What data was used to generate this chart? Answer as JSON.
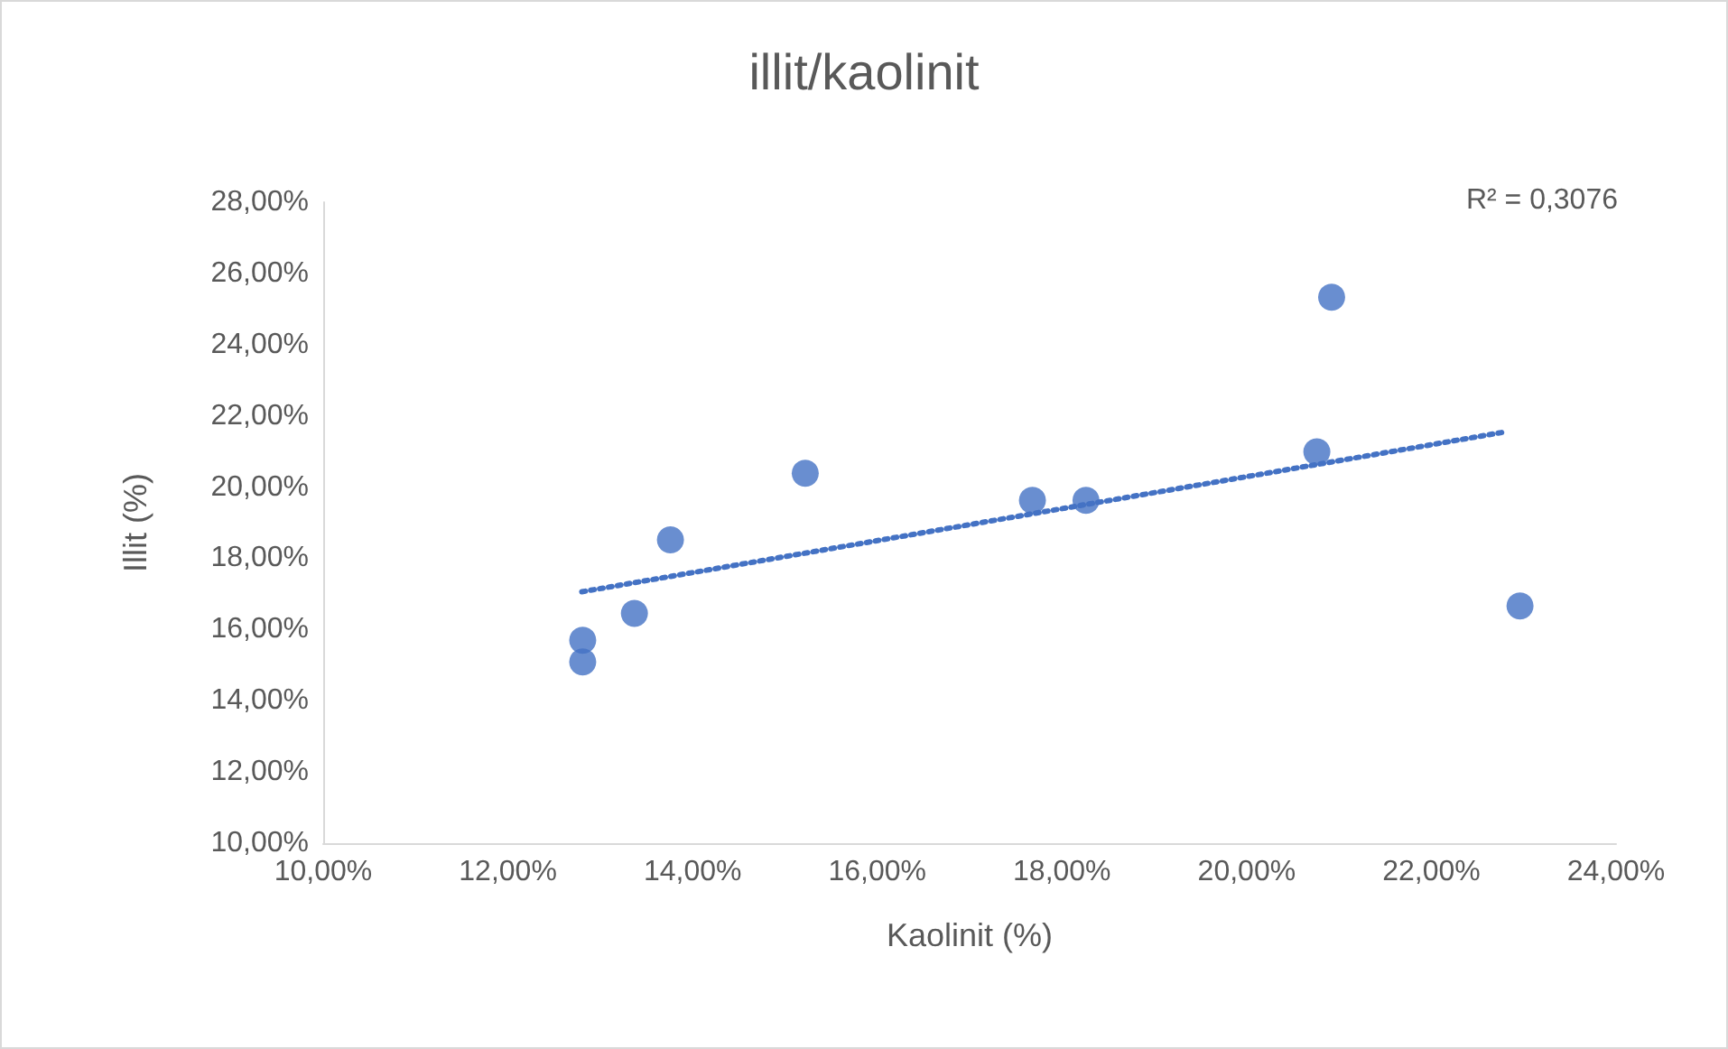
{
  "chart_data": {
    "type": "scatter",
    "title": "illit/kaolinit",
    "xlabel": "Kaolinit (%)",
    "ylabel": "Illit (%)",
    "xlim": [
      10,
      24
    ],
    "xticks": [
      {
        "value": 10,
        "label": "10,00%"
      },
      {
        "value": 12,
        "label": "12,00%"
      },
      {
        "value": 14,
        "label": "14,00%"
      },
      {
        "value": 16,
        "label": "16,00%"
      },
      {
        "value": 18,
        "label": "18,00%"
      },
      {
        "value": 20,
        "label": "20,00%"
      },
      {
        "value": 22,
        "label": "22,00%"
      },
      {
        "value": 24,
        "label": "24,00%"
      }
    ],
    "ylim": [
      10,
      28
    ],
    "yticks": [
      {
        "value": 10,
        "label": "10,00%"
      },
      {
        "value": 12,
        "label": "12,00%"
      },
      {
        "value": 14,
        "label": "14,00%"
      },
      {
        "value": 16,
        "label": "16,00%"
      },
      {
        "value": 18,
        "label": "18,00%"
      },
      {
        "value": 20,
        "label": "20,00%"
      },
      {
        "value": 22,
        "label": "22,00%"
      },
      {
        "value": 24,
        "label": "24,00%"
      },
      {
        "value": 26,
        "label": "26,00%"
      },
      {
        "value": 28,
        "label": "28,00%"
      }
    ],
    "grid": false,
    "marker": "circle",
    "annotations": [
      "R² = 0,3076"
    ],
    "series": [
      {
        "color": "#4472c4",
        "x": [
          12.81,
          12.81,
          13.37,
          13.76,
          15.22,
          17.68,
          18.26,
          20.76,
          20.92,
          22.96
        ],
        "values": [
          15.7,
          15.09,
          16.45,
          18.52,
          20.39,
          19.63,
          19.63,
          20.99,
          25.33,
          16.66
        ]
      },
      {
        "type": "line",
        "color": "#4472c4",
        "line_style": "dotted",
        "marker": "none",
        "x": [
          12.8,
          22.8
        ],
        "values": [
          17.06,
          21.55
        ]
      }
    ]
  }
}
